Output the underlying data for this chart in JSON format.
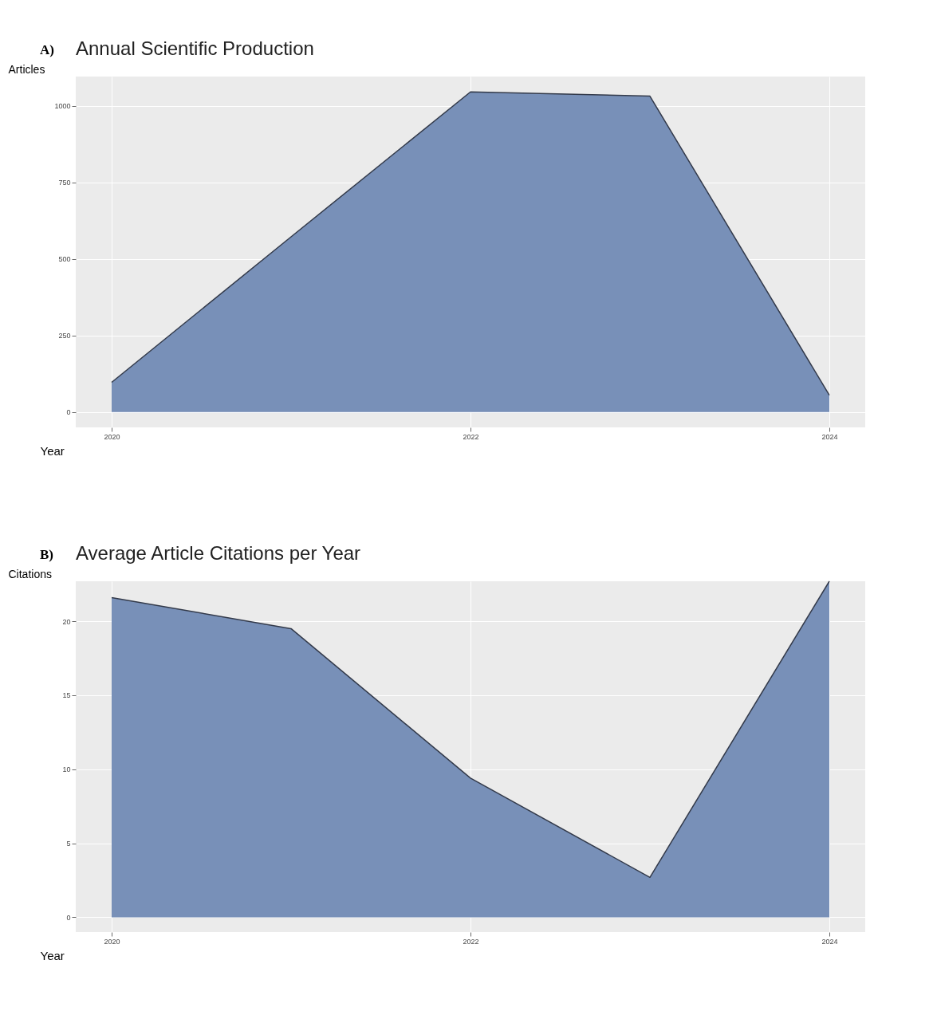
{
  "chart_data": [
    {
      "type": "area",
      "title": "Annual Scientific Production",
      "xlabel": "Year",
      "ylabel": "Articles",
      "annotations": [
        "A)"
      ],
      "x": [
        2020,
        2021,
        2022,
        2023,
        2024
      ],
      "values": [
        97,
        572,
        1045,
        1031,
        55
      ],
      "color": "#7890b8",
      "xlim": [
        2019.8,
        2024.2
      ],
      "xticks": [
        2020,
        2022,
        2024
      ],
      "ylim": [
        -50,
        1095
      ],
      "yticks": [
        0,
        250,
        500,
        750,
        1000
      ],
      "grid": true
    },
    {
      "type": "area",
      "title": "Average Article Citations per Year",
      "xlabel": "Year",
      "ylabel": "Citations",
      "annotations": [
        "B)"
      ],
      "x": [
        2020,
        2021,
        2022,
        2023,
        2024
      ],
      "values": [
        21.6,
        19.5,
        9.4,
        2.7,
        22.7
      ],
      "color": "#7890b8",
      "xlim": [
        2019.8,
        2024.2
      ],
      "xticks": [
        2020,
        2022,
        2024
      ],
      "ylim": [
        -1,
        22.7
      ],
      "yticks": [
        0,
        5,
        10,
        15,
        20
      ],
      "grid": true
    }
  ]
}
